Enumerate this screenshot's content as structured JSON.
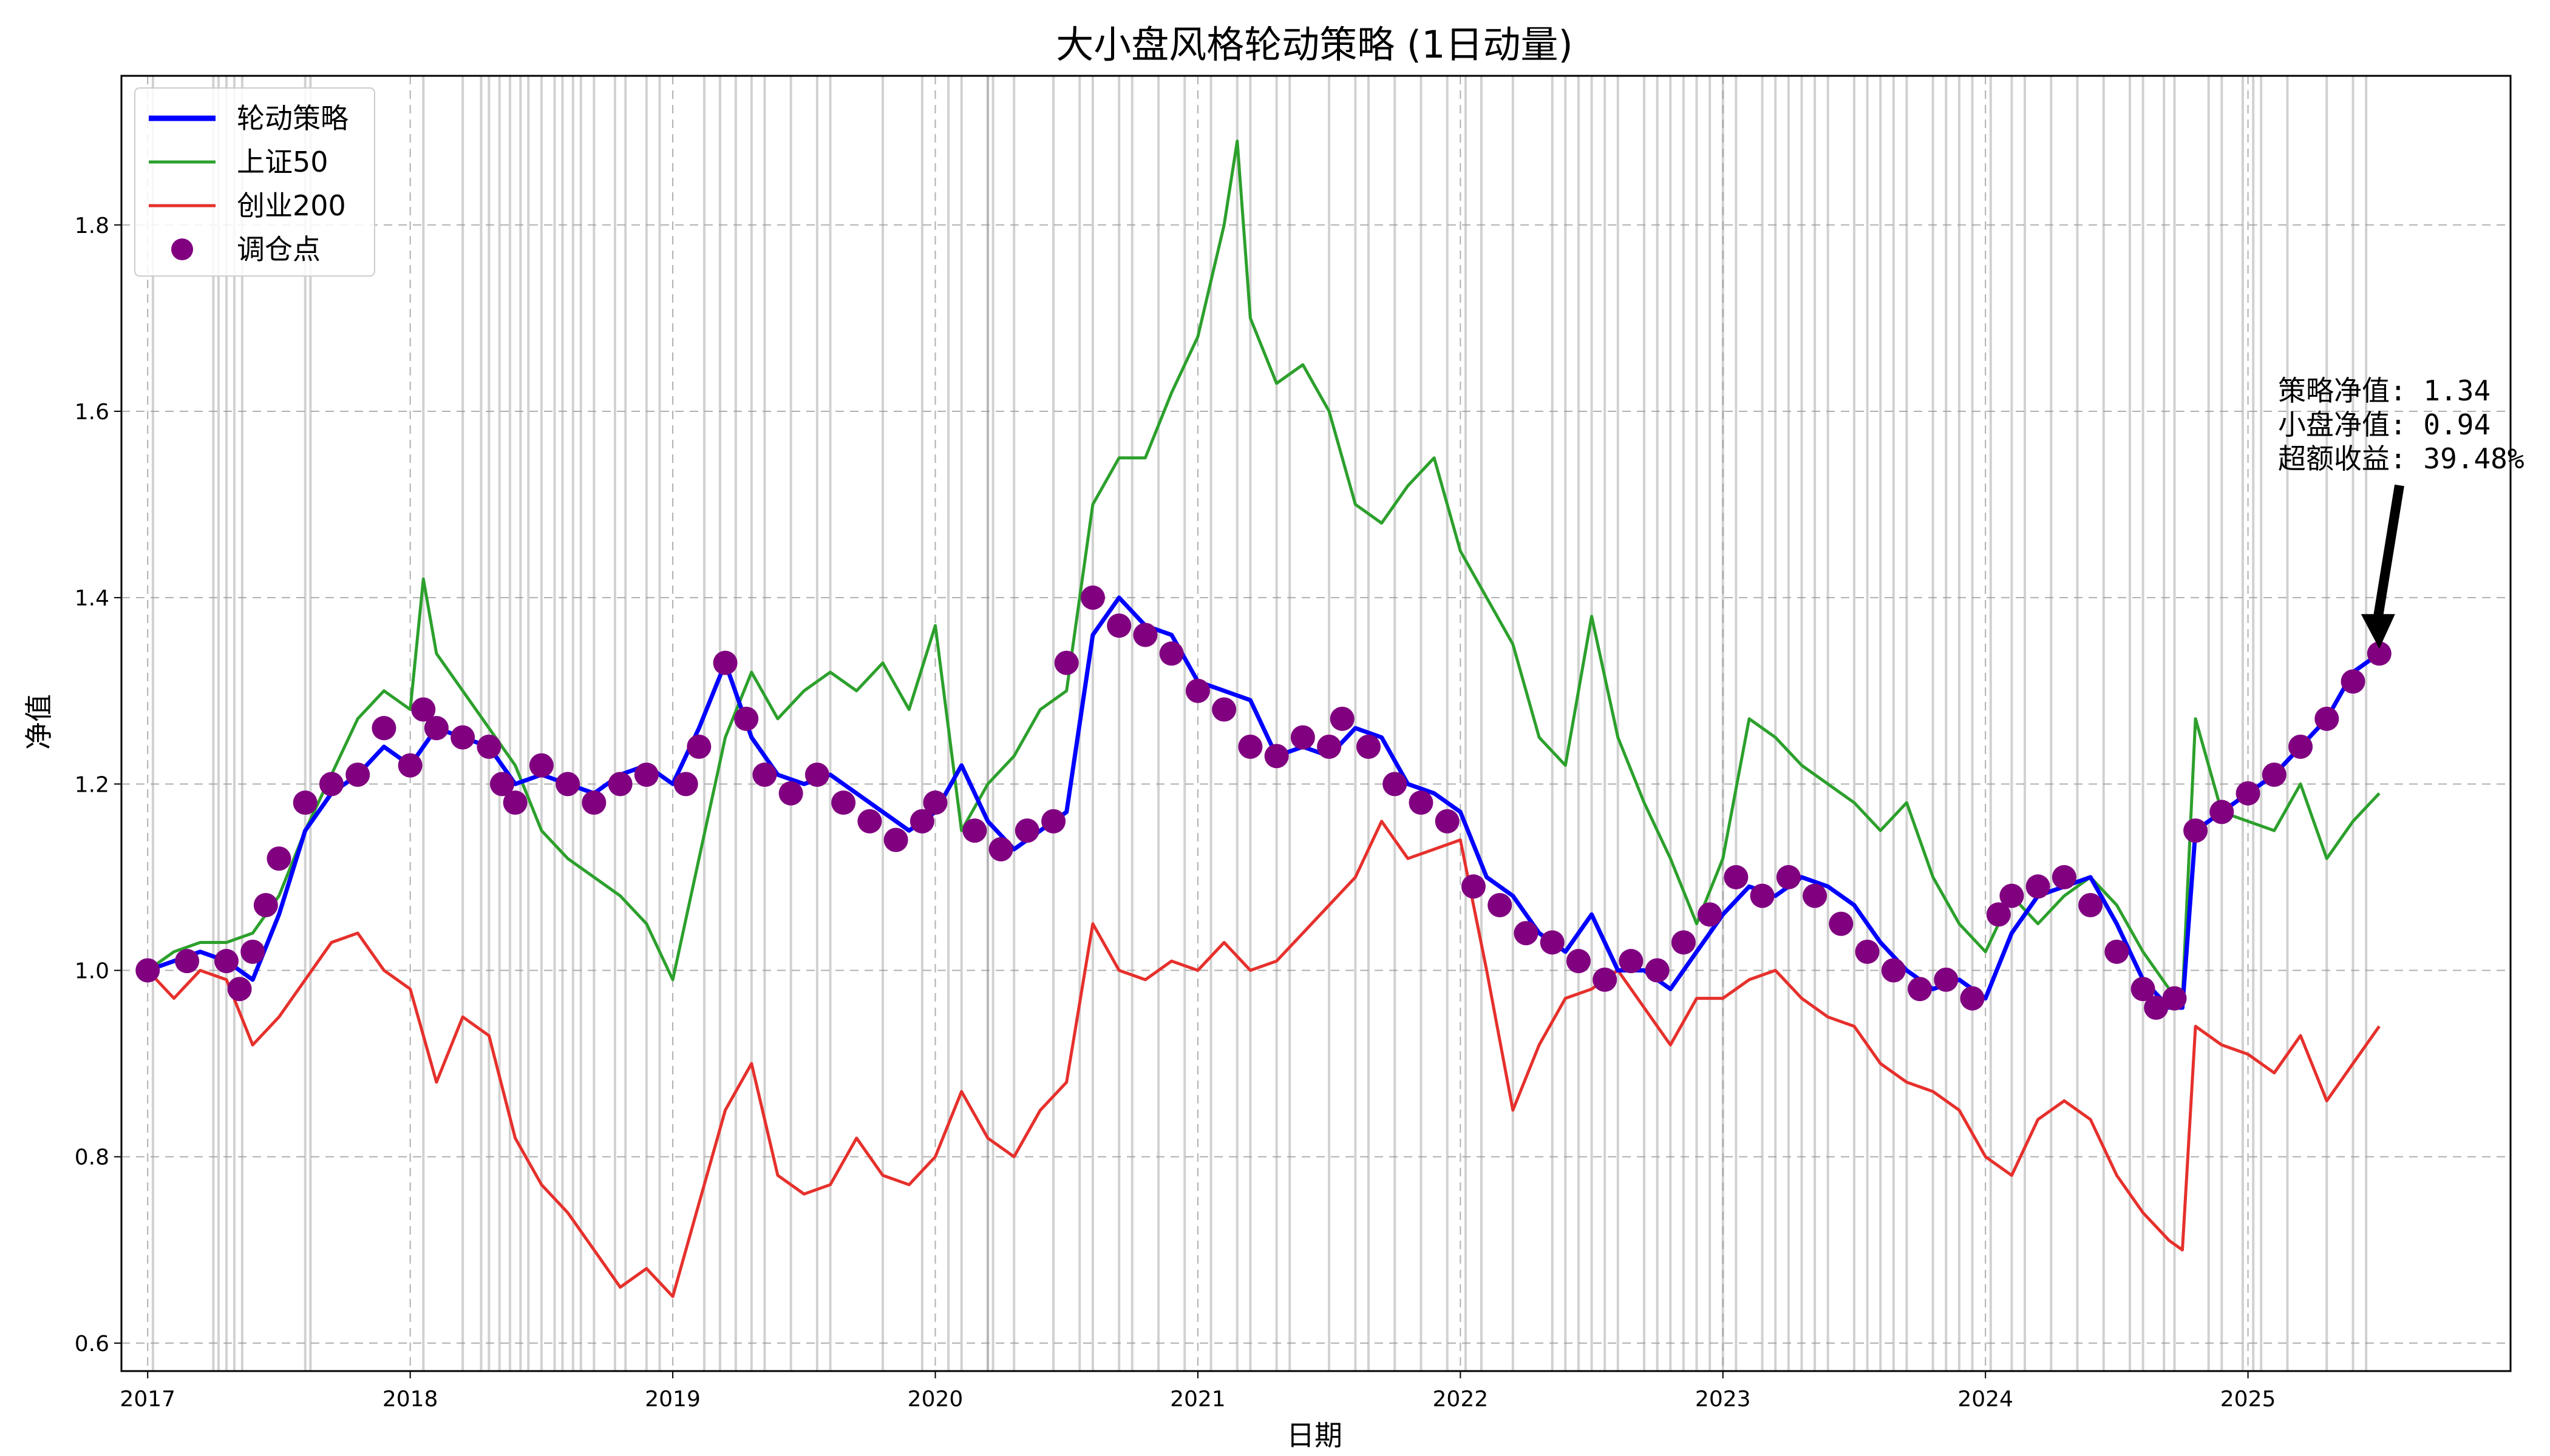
{
  "chart_data": {
    "type": "line",
    "title": "大小盘风格轮动策略 (1日动量)",
    "xlabel": "日期",
    "ylabel": "净值",
    "xlim": [
      2016.9,
      2026.0
    ],
    "ylim": [
      0.57,
      1.96
    ],
    "x_ticks": [
      "2017",
      "2018",
      "2019",
      "2020",
      "2021",
      "2022",
      "2023",
      "2024",
      "2025"
    ],
    "y_ticks": [
      "0.6",
      "0.8",
      "1.0",
      "1.2",
      "1.4",
      "1.6",
      "1.8"
    ],
    "grid": true,
    "legend_position": "upper-left",
    "series": [
      {
        "name": "轮动策略",
        "color": "#0000ff",
        "x": [
          2017.0,
          2017.1,
          2017.2,
          2017.3,
          2017.4,
          2017.5,
          2017.6,
          2017.7,
          2017.8,
          2017.9,
          2018.0,
          2018.1,
          2018.2,
          2018.3,
          2018.4,
          2018.5,
          2018.6,
          2018.7,
          2018.8,
          2018.9,
          2019.0,
          2019.1,
          2019.2,
          2019.3,
          2019.4,
          2019.5,
          2019.6,
          2019.7,
          2019.8,
          2019.9,
          2020.0,
          2020.1,
          2020.2,
          2020.3,
          2020.4,
          2020.5,
          2020.6,
          2020.7,
          2020.8,
          2020.9,
          2021.0,
          2021.1,
          2021.2,
          2021.3,
          2021.4,
          2021.5,
          2021.6,
          2021.7,
          2021.8,
          2021.9,
          2022.0,
          2022.1,
          2022.2,
          2022.3,
          2022.4,
          2022.5,
          2022.6,
          2022.7,
          2022.8,
          2022.9,
          2023.0,
          2023.1,
          2023.2,
          2023.3,
          2023.4,
          2023.5,
          2023.6,
          2023.7,
          2023.8,
          2023.9,
          2024.0,
          2024.1,
          2024.2,
          2024.3,
          2024.4,
          2024.5,
          2024.6,
          2024.7,
          2024.75,
          2024.8,
          2024.9,
          2025.0,
          2025.1,
          2025.2,
          2025.3,
          2025.4,
          2025.5
        ],
        "values": [
          1.0,
          1.01,
          1.02,
          1.01,
          0.99,
          1.06,
          1.15,
          1.19,
          1.21,
          1.24,
          1.22,
          1.26,
          1.25,
          1.24,
          1.2,
          1.21,
          1.2,
          1.19,
          1.21,
          1.22,
          1.2,
          1.26,
          1.33,
          1.25,
          1.21,
          1.2,
          1.21,
          1.19,
          1.17,
          1.15,
          1.17,
          1.22,
          1.16,
          1.13,
          1.15,
          1.17,
          1.36,
          1.4,
          1.37,
          1.36,
          1.31,
          1.3,
          1.29,
          1.23,
          1.24,
          1.23,
          1.26,
          1.25,
          1.2,
          1.19,
          1.17,
          1.1,
          1.08,
          1.04,
          1.02,
          1.06,
          1.0,
          1.0,
          0.98,
          1.02,
          1.06,
          1.09,
          1.08,
          1.1,
          1.09,
          1.07,
          1.03,
          1.0,
          0.98,
          0.99,
          0.97,
          1.04,
          1.08,
          1.09,
          1.1,
          1.05,
          0.99,
          0.96,
          0.96,
          1.15,
          1.17,
          1.19,
          1.21,
          1.24,
          1.27,
          1.32,
          1.34
        ]
      },
      {
        "name": "上证50",
        "color": "#2ca02c",
        "x": [
          2017.0,
          2017.1,
          2017.2,
          2017.3,
          2017.4,
          2017.5,
          2017.6,
          2017.7,
          2017.8,
          2017.9,
          2018.0,
          2018.05,
          2018.1,
          2018.2,
          2018.3,
          2018.4,
          2018.5,
          2018.6,
          2018.7,
          2018.8,
          2018.9,
          2019.0,
          2019.1,
          2019.2,
          2019.3,
          2019.4,
          2019.5,
          2019.6,
          2019.7,
          2019.8,
          2019.9,
          2020.0,
          2020.1,
          2020.2,
          2020.3,
          2020.4,
          2020.5,
          2020.6,
          2020.7,
          2020.8,
          2020.9,
          2021.0,
          2021.1,
          2021.15,
          2021.2,
          2021.3,
          2021.4,
          2021.5,
          2021.6,
          2021.7,
          2021.8,
          2021.9,
          2022.0,
          2022.1,
          2022.2,
          2022.3,
          2022.4,
          2022.5,
          2022.6,
          2022.7,
          2022.8,
          2022.9,
          2023.0,
          2023.1,
          2023.2,
          2023.3,
          2023.4,
          2023.5,
          2023.6,
          2023.7,
          2023.8,
          2023.9,
          2024.0,
          2024.1,
          2024.2,
          2024.3,
          2024.4,
          2024.5,
          2024.6,
          2024.7,
          2024.75,
          2024.8,
          2024.9,
          2025.0,
          2025.1,
          2025.2,
          2025.3,
          2025.4,
          2025.5
        ],
        "values": [
          1.0,
          1.02,
          1.03,
          1.03,
          1.04,
          1.08,
          1.15,
          1.21,
          1.27,
          1.3,
          1.28,
          1.42,
          1.34,
          1.3,
          1.26,
          1.22,
          1.15,
          1.12,
          1.1,
          1.08,
          1.05,
          0.99,
          1.12,
          1.25,
          1.32,
          1.27,
          1.3,
          1.32,
          1.3,
          1.33,
          1.28,
          1.37,
          1.15,
          1.2,
          1.23,
          1.28,
          1.3,
          1.5,
          1.55,
          1.55,
          1.62,
          1.68,
          1.8,
          1.89,
          1.7,
          1.63,
          1.65,
          1.6,
          1.5,
          1.48,
          1.52,
          1.55,
          1.45,
          1.4,
          1.35,
          1.25,
          1.22,
          1.38,
          1.25,
          1.18,
          1.12,
          1.05,
          1.12,
          1.27,
          1.25,
          1.22,
          1.2,
          1.18,
          1.15,
          1.18,
          1.1,
          1.05,
          1.02,
          1.08,
          1.05,
          1.08,
          1.1,
          1.07,
          1.02,
          0.98,
          0.97,
          1.27,
          1.17,
          1.16,
          1.15,
          1.2,
          1.12,
          1.16,
          1.19
        ]
      },
      {
        "name": "创业200",
        "color": "#e6302c",
        "x": [
          2017.0,
          2017.1,
          2017.2,
          2017.3,
          2017.4,
          2017.5,
          2017.6,
          2017.7,
          2017.8,
          2017.9,
          2018.0,
          2018.1,
          2018.2,
          2018.3,
          2018.4,
          2018.5,
          2018.6,
          2018.7,
          2018.8,
          2018.9,
          2019.0,
          2019.1,
          2019.2,
          2019.3,
          2019.4,
          2019.5,
          2019.6,
          2019.7,
          2019.8,
          2019.9,
          2020.0,
          2020.1,
          2020.2,
          2020.3,
          2020.4,
          2020.5,
          2020.6,
          2020.7,
          2020.8,
          2020.9,
          2021.0,
          2021.1,
          2021.2,
          2021.3,
          2021.4,
          2021.5,
          2021.6,
          2021.7,
          2021.8,
          2021.9,
          2022.0,
          2022.1,
          2022.2,
          2022.3,
          2022.4,
          2022.5,
          2022.6,
          2022.7,
          2022.8,
          2022.9,
          2023.0,
          2023.1,
          2023.2,
          2023.3,
          2023.4,
          2023.5,
          2023.6,
          2023.7,
          2023.8,
          2023.9,
          2024.0,
          2024.1,
          2024.2,
          2024.3,
          2024.4,
          2024.5,
          2024.6,
          2024.7,
          2024.75,
          2024.8,
          2024.9,
          2025.0,
          2025.1,
          2025.2,
          2025.3,
          2025.4,
          2025.5
        ],
        "values": [
          1.0,
          0.97,
          1.0,
          0.99,
          0.92,
          0.95,
          0.99,
          1.03,
          1.04,
          1.0,
          0.98,
          0.88,
          0.95,
          0.93,
          0.82,
          0.77,
          0.74,
          0.7,
          0.66,
          0.68,
          0.65,
          0.75,
          0.85,
          0.9,
          0.78,
          0.76,
          0.77,
          0.82,
          0.78,
          0.77,
          0.8,
          0.87,
          0.82,
          0.8,
          0.85,
          0.88,
          1.05,
          1.0,
          0.99,
          1.01,
          1.0,
          1.03,
          1.0,
          1.01,
          1.04,
          1.07,
          1.1,
          1.16,
          1.12,
          1.13,
          1.14,
          1.0,
          0.85,
          0.92,
          0.97,
          0.98,
          1.0,
          0.96,
          0.92,
          0.97,
          0.97,
          0.99,
          1.0,
          0.97,
          0.95,
          0.94,
          0.9,
          0.88,
          0.87,
          0.85,
          0.8,
          0.78,
          0.84,
          0.86,
          0.84,
          0.78,
          0.74,
          0.71,
          0.7,
          0.94,
          0.92,
          0.91,
          0.89,
          0.93,
          0.86,
          0.9,
          0.94
        ]
      }
    ],
    "rebalance_points": {
      "name": "调仓点",
      "color": "#800080",
      "x": [
        2017.0,
        2017.15,
        2017.3,
        2017.35,
        2017.4,
        2017.45,
        2017.5,
        2017.6,
        2017.7,
        2017.8,
        2017.9,
        2018.0,
        2018.05,
        2018.1,
        2018.2,
        2018.3,
        2018.35,
        2018.4,
        2018.5,
        2018.6,
        2018.7,
        2018.8,
        2018.9,
        2019.05,
        2019.1,
        2019.2,
        2019.28,
        2019.35,
        2019.45,
        2019.55,
        2019.65,
        2019.75,
        2019.85,
        2019.95,
        2020.0,
        2020.15,
        2020.25,
        2020.35,
        2020.45,
        2020.5,
        2020.6,
        2020.7,
        2020.8,
        2020.9,
        2021.0,
        2021.1,
        2021.2,
        2021.3,
        2021.4,
        2021.5,
        2021.55,
        2021.65,
        2021.75,
        2021.85,
        2021.95,
        2022.05,
        2022.15,
        2022.25,
        2022.35,
        2022.45,
        2022.55,
        2022.65,
        2022.75,
        2022.85,
        2022.95,
        2023.05,
        2023.15,
        2023.25,
        2023.35,
        2023.45,
        2023.55,
        2023.65,
        2023.75,
        2023.85,
        2023.95,
        2024.05,
        2024.1,
        2024.2,
        2024.3,
        2024.4,
        2024.5,
        2024.6,
        2024.65,
        2024.72,
        2024.8,
        2024.9,
        2025.0,
        2025.1,
        2025.2,
        2025.3,
        2025.4,
        2025.5
      ],
      "values": [
        1.0,
        1.01,
        1.01,
        0.98,
        1.02,
        1.07,
        1.12,
        1.18,
        1.2,
        1.21,
        1.26,
        1.22,
        1.28,
        1.26,
        1.25,
        1.24,
        1.2,
        1.18,
        1.22,
        1.2,
        1.18,
        1.2,
        1.21,
        1.2,
        1.24,
        1.33,
        1.27,
        1.21,
        1.19,
        1.21,
        1.18,
        1.16,
        1.14,
        1.16,
        1.18,
        1.15,
        1.13,
        1.15,
        1.16,
        1.33,
        1.4,
        1.37,
        1.36,
        1.34,
        1.3,
        1.28,
        1.24,
        1.23,
        1.25,
        1.24,
        1.27,
        1.24,
        1.2,
        1.18,
        1.16,
        1.09,
        1.07,
        1.04,
        1.03,
        1.01,
        0.99,
        1.01,
        1.0,
        1.03,
        1.06,
        1.1,
        1.08,
        1.1,
        1.08,
        1.05,
        1.02,
        1.0,
        0.98,
        0.99,
        0.97,
        1.06,
        1.08,
        1.09,
        1.1,
        1.07,
        1.02,
        0.98,
        0.96,
        0.97,
        1.15,
        1.17,
        1.19,
        1.21,
        1.24,
        1.27,
        1.31,
        1.34
      ]
    },
    "rebalance_lines_x": [
      2017.02,
      2017.25,
      2017.27,
      2017.3,
      2017.33,
      2017.36,
      2017.6,
      2017.62,
      2018.05,
      2018.2,
      2018.27,
      2018.3,
      2018.34,
      2018.38,
      2018.42,
      2018.45,
      2018.5,
      2018.55,
      2018.58,
      2018.62,
      2018.65,
      2018.7,
      2018.78,
      2018.82,
      2018.9,
      2018.95,
      2019.12,
      2019.18,
      2019.24,
      2019.3,
      2019.35,
      2019.45,
      2019.55,
      2019.6,
      2019.8,
      2019.95,
      2020.05,
      2020.1,
      2020.2,
      2020.2,
      2020.22,
      2020.3,
      2020.45,
      2020.55,
      2020.6,
      2020.7,
      2020.75,
      2020.85,
      2020.95,
      2021.05,
      2021.15,
      2021.2,
      2021.3,
      2021.35,
      2021.5,
      2021.6,
      2021.65,
      2021.75,
      2021.85,
      2021.95,
      2022.02,
      2022.08,
      2022.2,
      2022.35,
      2022.4,
      2022.45,
      2022.5,
      2022.55,
      2022.6,
      2022.7,
      2022.75,
      2022.8,
      2022.85,
      2022.9,
      2022.95,
      2023.0,
      2023.05,
      2023.15,
      2023.2,
      2023.25,
      2023.3,
      2023.35,
      2023.4,
      2023.5,
      2023.55,
      2023.6,
      2023.65,
      2023.7,
      2023.8,
      2023.85,
      2023.9,
      2023.95,
      2024.02,
      2024.1,
      2024.15,
      2024.25,
      2024.35,
      2024.45,
      2024.55,
      2024.6,
      2024.68,
      2024.72,
      2024.85,
      2024.9,
      2024.98,
      2025.02,
      2025.05,
      2025.15,
      2025.3,
      2025.4,
      2025.45
    ],
    "annotation": {
      "lines": [
        "策略净值: 1.34",
        "小盘净值: 0.94",
        "超额收益: 39.48%"
      ],
      "arrow_target": {
        "x": 2025.5,
        "y": 1.34
      }
    }
  }
}
